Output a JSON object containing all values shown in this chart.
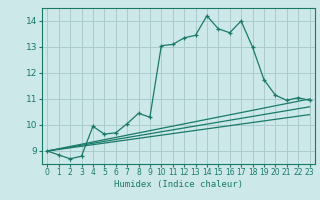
{
  "xlabel": "Humidex (Indice chaleur)",
  "ylabel": "",
  "bg_color": "#cce8e8",
  "grid_color": "#aacccc",
  "line_color": "#1a7a6a",
  "xlim": [
    -0.5,
    23.5
  ],
  "ylim": [
    8.5,
    14.5
  ],
  "yticks": [
    9,
    10,
    11,
    12,
    13,
    14
  ],
  "xticks": [
    0,
    1,
    2,
    3,
    4,
    5,
    6,
    7,
    8,
    9,
    10,
    11,
    12,
    13,
    14,
    15,
    16,
    17,
    18,
    19,
    20,
    21,
    22,
    23
  ],
  "main_line_x": [
    0,
    1,
    2,
    3,
    4,
    5,
    6,
    7,
    8,
    9,
    10,
    11,
    12,
    13,
    14,
    15,
    16,
    17,
    18,
    19,
    20,
    21,
    22,
    23
  ],
  "main_line_y": [
    9.0,
    8.85,
    8.7,
    8.8,
    9.95,
    9.65,
    9.7,
    10.05,
    10.45,
    10.3,
    13.05,
    13.1,
    13.35,
    13.45,
    14.2,
    13.7,
    13.55,
    14.0,
    13.0,
    11.75,
    11.15,
    10.95,
    11.05,
    10.95
  ],
  "straight_lines": [
    {
      "x": [
        0,
        23
      ],
      "y": [
        9.0,
        11.0
      ]
    },
    {
      "x": [
        0,
        23
      ],
      "y": [
        9.0,
        10.7
      ]
    },
    {
      "x": [
        0,
        23
      ],
      "y": [
        9.0,
        10.4
      ]
    }
  ]
}
